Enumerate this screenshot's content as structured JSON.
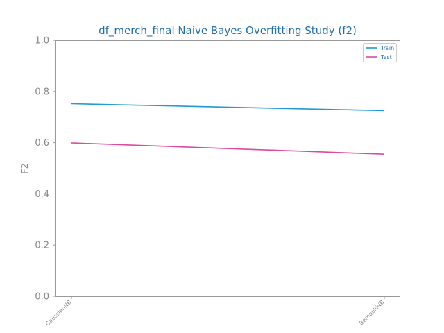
{
  "chart_data": {
    "type": "line",
    "title": "df_merch_final Naive Bayes Overfitting Study (f2)",
    "xlabel": "",
    "ylabel": "F2",
    "categories": [
      "GaussianNB",
      "BernoulliNB"
    ],
    "ylim": [
      0,
      1
    ],
    "yticks": [
      "0.0",
      "0.2",
      "0.4",
      "0.6",
      "0.8",
      "1.0"
    ],
    "grid": false,
    "legend_position": "top-right",
    "series": [
      {
        "name": "Train",
        "values": [
          0.752,
          0.725
        ],
        "color": "#1f9ad6"
      },
      {
        "name": "Test",
        "values": [
          0.599,
          0.555
        ],
        "color": "#e0479e"
      }
    ]
  }
}
